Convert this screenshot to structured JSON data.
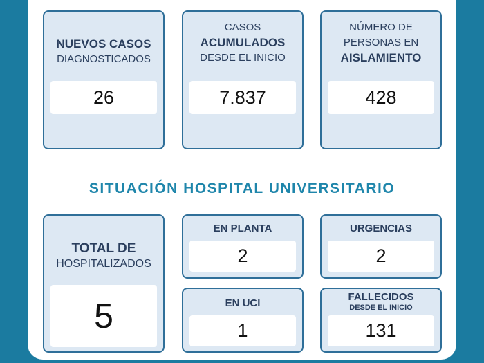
{
  "top": {
    "new_cases": {
      "line1": "NUEVOS CASOS",
      "line2": "DIAGNOSTICADOS",
      "value": "26"
    },
    "cumulative": {
      "line1": "CASOS",
      "line2": "ACUMULADOS",
      "line3": "DESDE EL INICIO",
      "value": "7.837"
    },
    "isolation": {
      "line1": "NÚMERO DE",
      "line2": "PERSONAS EN",
      "line3": "AISLAMIENTO",
      "value": "428"
    }
  },
  "section_title": "SITUACIÓN HOSPITAL UNIVERSITARIO",
  "hospital": {
    "total": {
      "line1": "TOTAL DE",
      "line2": "HOSPITALIZADOS",
      "value": "5"
    },
    "ward": {
      "label": "EN PLANTA",
      "value": "2"
    },
    "emergency": {
      "label": "URGENCIAS",
      "value": "2"
    },
    "icu": {
      "label": "EN UCI",
      "value": "1"
    },
    "deceased": {
      "label": "FALLECIDOS",
      "sublabel": "DESDE EL INICIO",
      "value": "131"
    }
  },
  "colors": {
    "background": "#1b7ba0",
    "card_fill": "#dde8f3",
    "card_border": "#2f6f99",
    "title": "#1f86ab",
    "text": "#2b3f5e"
  }
}
